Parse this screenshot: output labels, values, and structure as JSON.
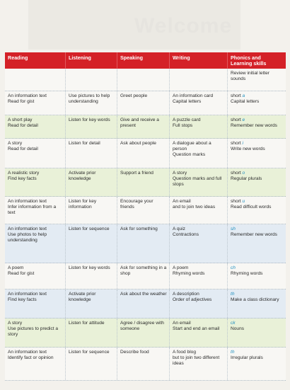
{
  "background": {
    "title": "Welcome"
  },
  "colors": {
    "header_bg": "#d42127",
    "header_text": "#ffffff",
    "phonics_accent": "#1e8fbf"
  },
  "header": [
    "Reading",
    "Listening",
    "Speaking",
    "Writing",
    "Phonics and Learning skills"
  ],
  "rows": [
    {
      "reading": [
        "",
        ""
      ],
      "listening": [
        ""
      ],
      "speaking": [
        ""
      ],
      "writing": [
        "",
        ""
      ],
      "phonics": [
        "",
        ""
      ],
      "skill": [
        "Review initial letter sounds"
      ]
    },
    {
      "reading": [
        "An information text",
        "Read for gist"
      ],
      "listening": [
        "Use pictures to help understanding"
      ],
      "speaking": [
        "Greet people"
      ],
      "writing": [
        "An information card",
        "Capital letters"
      ],
      "phonics": [
        "short ",
        "a"
      ],
      "skill": [
        "Capital letters"
      ]
    },
    {
      "reading": [
        "A short play",
        "Read for detail"
      ],
      "listening": [
        "Listen for key words"
      ],
      "speaking": [
        "Give and receive a present"
      ],
      "writing": [
        "A puzzle card",
        "Full stops"
      ],
      "phonics": [
        "short ",
        "e"
      ],
      "skill": [
        "Remember new words"
      ]
    },
    {
      "reading": [
        "A story",
        "Read for detail"
      ],
      "listening": [
        "Listen for detail"
      ],
      "speaking": [
        "Ask about people"
      ],
      "writing": [
        "A dialogue about a person",
        "Question marks"
      ],
      "phonics": [
        "short ",
        "i"
      ],
      "skill": [
        "Write new words"
      ]
    },
    {
      "reading": [
        "A realistic story",
        "Find key facts"
      ],
      "listening": [
        "Activate prior knowledge"
      ],
      "speaking": [
        "Support a friend"
      ],
      "writing": [
        "A story",
        "Question marks and full stops"
      ],
      "phonics": [
        "short ",
        "o"
      ],
      "skill": [
        "Regular plurals"
      ]
    },
    {
      "reading": [
        "An information text",
        "Infer information from a text"
      ],
      "listening": [
        "Listen for key information"
      ],
      "speaking": [
        "Encourage your friends"
      ],
      "writing": [
        "An email",
        "and to join two ideas"
      ],
      "phonics": [
        "short ",
        "u"
      ],
      "skill": [
        "Read difficult words"
      ]
    },
    {
      "reading": [
        "An information text",
        "Use photos to help understanding"
      ],
      "listening": [
        "Listen for sequence"
      ],
      "speaking": [
        "Ask for something"
      ],
      "writing": [
        "A quiz",
        "Contractions"
      ],
      "phonics": [
        "",
        "sh"
      ],
      "skill": [
        "Remember new words"
      ]
    },
    {
      "reading": [
        "A poem",
        "Read for gist"
      ],
      "listening": [
        "Listen for key words"
      ],
      "speaking": [
        "Ask for something in a shop"
      ],
      "writing": [
        "A poem",
        "Rhyming words"
      ],
      "phonics": [
        "",
        "ch"
      ],
      "skill": [
        "Rhyming words"
      ]
    },
    {
      "reading": [
        "An information text",
        "Find key facts"
      ],
      "listening": [
        "Activate prior knowledge"
      ],
      "speaking": [
        "Ask about the weather"
      ],
      "writing": [
        "A description",
        "Order of adjectives"
      ],
      "phonics": [
        "",
        "th"
      ],
      "skill": [
        "Make a class dictionary"
      ]
    },
    {
      "reading": [
        "A story",
        "Use pictures to predict a story"
      ],
      "listening": [
        "Listen for attitude"
      ],
      "speaking": [
        "Agree / disagree with someone"
      ],
      "writing": [
        "An email",
        "Start and end an email"
      ],
      "phonics": [
        "",
        "ck"
      ],
      "skill": [
        "Nouns"
      ]
    },
    {
      "reading": [
        "An information text",
        "Identify fact or opinion"
      ],
      "listening": [
        "Listen for sequence"
      ],
      "speaking": [
        "Describe food"
      ],
      "writing": [
        "A food blog",
        "but to join two different ideas"
      ],
      "phonics": [
        "",
        "th"
      ],
      "skill": [
        "Irregular plurals"
      ]
    }
  ]
}
